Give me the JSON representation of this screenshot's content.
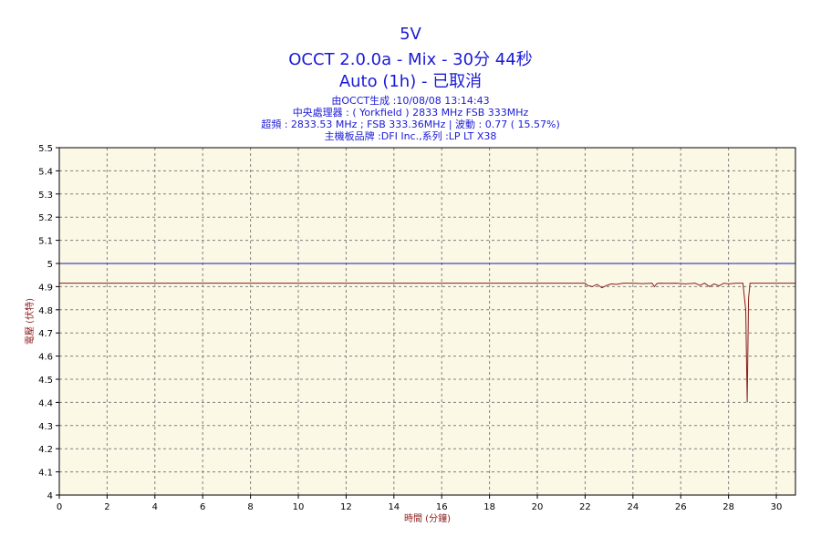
{
  "header": {
    "title": "5V",
    "subtitle": "OCCT 2.0.0a - Mix - 30分 44秒",
    "mode": "Auto (1h) - 已取消",
    "info_lines": [
      "由OCCT生成 :10/08/08 13:14:43",
      "中央處理器 : ( Yorkfield ) 2833 MHz FSB 333MHz",
      "超頻 : 2833.53 MHz ; FSB 333.36MHz | 波動 : 0.77 ( 15.57%)",
      "主機板品牌 :DFI Inc.,系列 :LP LT X38"
    ]
  },
  "colors": {
    "plot_bg": "#fcf8e6",
    "grid": "#808080",
    "reference_line": "#1a1ab0",
    "series_line": "#8b1a1a",
    "title_blue": "#1a1ad6",
    "axis_label": "#8b1a1a"
  },
  "chart_data": {
    "type": "line",
    "xlabel": "時間 (分鐘)",
    "ylabel": "電壓 (伏特)",
    "xlim": [
      0,
      30.8
    ],
    "ylim": [
      4,
      5.5
    ],
    "x_ticks": [
      0,
      2,
      4,
      6,
      8,
      10,
      12,
      14,
      16,
      18,
      20,
      22,
      24,
      26,
      28,
      30
    ],
    "y_ticks": [
      4,
      4.1,
      4.2,
      4.3,
      4.4,
      4.5,
      4.6,
      4.7,
      4.8,
      4.9,
      5,
      5.1,
      5.2,
      5.3,
      5.4,
      5.5
    ],
    "x_tick_labels": [
      "0",
      "2",
      "4",
      "6",
      "8",
      "10",
      "12",
      "14",
      "16",
      "18",
      "20",
      "22",
      "24",
      "26",
      "28",
      "30"
    ],
    "y_tick_labels": [
      "4",
      "4.1",
      "4.2",
      "4.3",
      "4.4",
      "4.5",
      "4.6",
      "4.7",
      "4.8",
      "4.9",
      "5",
      "5.1",
      "5.2",
      "5.3",
      "5.4",
      "5.5"
    ],
    "grid": true,
    "reference_line": {
      "y": 5.0
    },
    "series": [
      {
        "x": [
          0,
          22.0,
          22.1,
          22.3,
          22.5,
          22.7,
          22.9,
          23.1,
          23.3,
          23.6,
          24.0,
          24.4,
          24.8,
          24.9,
          25.0,
          25.1,
          25.4,
          25.8,
          26.2,
          26.6,
          26.8,
          27.0,
          27.2,
          27.4,
          27.6,
          27.8,
          28.0,
          28.3,
          28.6,
          28.72,
          28.78,
          28.84,
          28.9,
          29.0,
          29.4,
          30.0,
          30.8
        ],
        "y": [
          4.915,
          4.915,
          4.905,
          4.9,
          4.91,
          4.895,
          4.905,
          4.912,
          4.91,
          4.915,
          4.915,
          4.913,
          4.915,
          4.9,
          4.913,
          4.915,
          4.914,
          4.915,
          4.912,
          4.915,
          4.905,
          4.915,
          4.9,
          4.912,
          4.903,
          4.915,
          4.912,
          4.915,
          4.915,
          4.8,
          4.4,
          4.85,
          4.915,
          4.915,
          4.915,
          4.915,
          4.915
        ]
      }
    ]
  }
}
